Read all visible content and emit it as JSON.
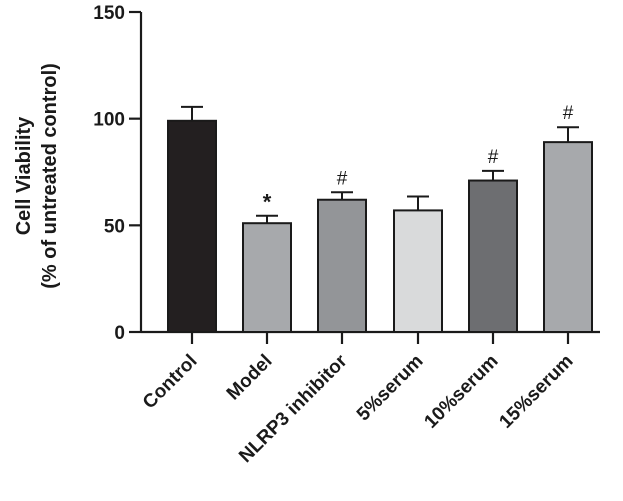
{
  "chart_data": {
    "type": "bar",
    "title": "",
    "xlabel": "",
    "ylabel_line1": "Cell Viability",
    "ylabel_line2": "(% of untreated control)",
    "ylim": [
      0,
      150
    ],
    "yticks": [
      "0",
      "50",
      "100",
      "150"
    ],
    "categories": [
      "Control",
      "Model",
      "NLRP3 inhibitor",
      "5%serum",
      "10%serum",
      "15%serum"
    ],
    "values": [
      99,
      51,
      62,
      57,
      71,
      89
    ],
    "errors": [
      6.5,
      3.5,
      3.5,
      6.5,
      4.5,
      7
    ],
    "bar_colors": [
      "#231f20",
      "#a7a9ac",
      "#939598",
      "#d9dadb",
      "#6d6e71",
      "#a7a9ac"
    ],
    "significance": [
      "",
      "*",
      "#",
      "",
      "#",
      "#"
    ],
    "grid": false,
    "legend": "none"
  }
}
